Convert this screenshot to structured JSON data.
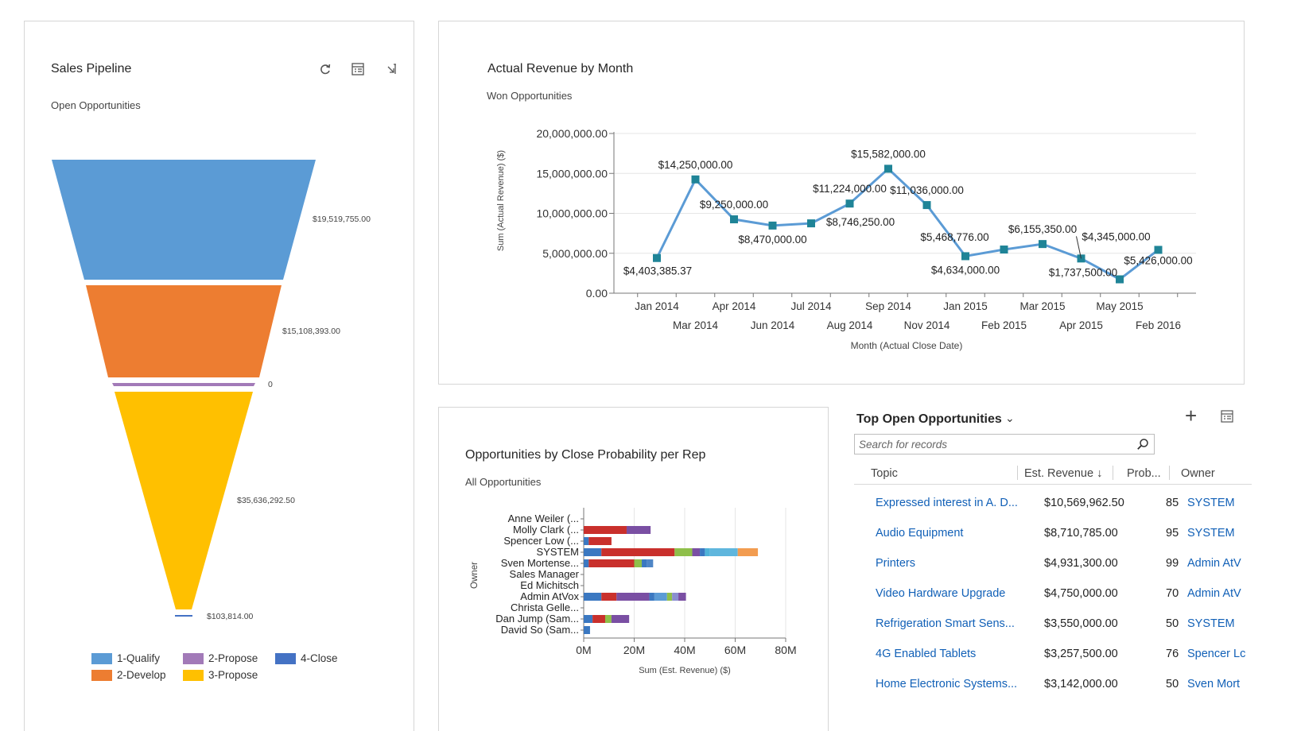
{
  "pipeline": {
    "title": "Sales Pipeline",
    "subtitle": "Open Opportunities",
    "icons": [
      "refresh-icon",
      "view-records-icon",
      "expand-chart-icon"
    ],
    "chart_data": {
      "type": "funnel",
      "stages": [
        {
          "name": "1-Qualify",
          "value": 19519755.0,
          "label": "$19,519,755.00",
          "color": "#5b9bd5"
        },
        {
          "name": "2-Develop",
          "value": 15108393.0,
          "label": "$15,108,393.00",
          "color": "#ed7d31"
        },
        {
          "name": "2-Propose",
          "value": 0,
          "label": "0",
          "color": "#a27ab8"
        },
        {
          "name": "3-Propose",
          "value": 35636292.5,
          "label": "$35,636,292.50",
          "color": "#ffc000"
        },
        {
          "name": "4-Close",
          "value": 103814.0,
          "label": "$103,814.00",
          "color": "#4472c4"
        }
      ]
    },
    "legend": [
      {
        "label": "1-Qualify",
        "color": "#5b9bd5"
      },
      {
        "label": "2-Propose",
        "color": "#a27ab8"
      },
      {
        "label": "4-Close",
        "color": "#4472c4"
      },
      {
        "label": "2-Develop",
        "color": "#ed7d31"
      },
      {
        "label": "3-Propose",
        "color": "#ffc000"
      }
    ]
  },
  "revenue": {
    "title": "Actual Revenue by Month",
    "subtitle": "Won Opportunities",
    "chart_data": {
      "type": "line",
      "ylabel": "Sum (Actual Revenue) ($)",
      "xlabel": "Month (Actual Close Date)",
      "ylim": [
        0,
        20000000
      ],
      "yticks": [
        "0.00",
        "5,000,000.00",
        "10,000,000.00",
        "15,000,000.00",
        "20,000,000.00"
      ],
      "ytick_values": [
        0,
        5000000,
        10000000,
        15000000,
        20000000
      ],
      "grid": true,
      "color": "#5b9bd5",
      "marker_color": "#1f8497",
      "x": [
        "Jan 2014",
        "Mar 2014",
        "Apr 2014",
        "Jun 2014",
        "Jul 2014",
        "Aug 2014",
        "Sep 2014",
        "Nov 2014",
        "Jan 2015",
        "Feb 2015",
        "Mar 2015",
        "Apr 2015",
        "May 2015",
        "Feb 2016"
      ],
      "values": [
        4403385.37,
        14250000.0,
        9250000.0,
        8470000.0,
        8746250.0,
        11224000.0,
        15582000.0,
        11036000.0,
        4634000.0,
        5468776.0,
        6155350.0,
        4345000.0,
        1737500.0,
        5426000.0
      ],
      "labels": [
        "$4,403,385.37",
        "$14,250,000.00",
        "$9,250,000.00",
        "$8,470,000.00",
        "$8,746,250.00",
        "$11,224,000.00",
        "$15,582,000.00",
        "$11,036,000.00",
        "$4,634,000.00",
        "$5,468,776.00",
        "$6,155,350.00",
        "$4,345,000.00",
        "$1,737,500.00",
        "$5,426,000.00"
      ]
    }
  },
  "probability": {
    "title": "Opportunities by Close Probability per Rep",
    "subtitle": "All Opportunities",
    "chart_data": {
      "type": "bar",
      "orientation": "horizontal",
      "stacked": true,
      "ylabel": "Owner",
      "xlabel": "Sum (Est. Revenue) ($)",
      "xlim": [
        0,
        80
      ],
      "xticks": [
        "0M",
        "20M",
        "40M",
        "60M",
        "80M"
      ],
      "xtick_values": [
        0,
        20,
        40,
        60,
        80
      ],
      "units": "M",
      "categories": [
        "Anne Weiler (...",
        "Molly Clark (...",
        "Spencer Low (...",
        "SYSTEM",
        "Sven Mortense...",
        "Sales Manager",
        "Ed Michitsch",
        "Admin AtVox",
        "Christa Gelle...",
        "Dan Jump (Sam...",
        "David So (Sam..."
      ],
      "segments": [
        [],
        [
          {
            "v": 17,
            "c": "#c9302c"
          },
          {
            "v": 9.5,
            "c": "#7a4fa3"
          }
        ],
        [
          {
            "v": 2,
            "c": "#3b78c1"
          },
          {
            "v": 9,
            "c": "#c9302c"
          }
        ],
        [
          {
            "v": 7,
            "c": "#3b78c1"
          },
          {
            "v": 29,
            "c": "#c9302c"
          },
          {
            "v": 7,
            "c": "#8fbf4a"
          },
          {
            "v": 3,
            "c": "#7a4fa3"
          },
          {
            "v": 2,
            "c": "#3b78c1"
          },
          {
            "v": 2,
            "c": "#4fb3d8"
          },
          {
            "v": 11,
            "c": "#5fb6dd"
          },
          {
            "v": 8,
            "c": "#f29c50"
          }
        ],
        [
          {
            "v": 2,
            "c": "#3b78c1"
          },
          {
            "v": 18,
            "c": "#c9302c"
          },
          {
            "v": 3,
            "c": "#8fbf4a"
          },
          {
            "v": 2,
            "c": "#3b78c1"
          },
          {
            "v": 2.5,
            "c": "#4f86c6"
          }
        ],
        [],
        [],
        [
          {
            "v": 7,
            "c": "#3b78c1"
          },
          {
            "v": 6,
            "c": "#c9302c"
          },
          {
            "v": 13,
            "c": "#7a4fa3"
          },
          {
            "v": 2,
            "c": "#3b78c1"
          },
          {
            "v": 5,
            "c": "#5b9bd5"
          },
          {
            "v": 2,
            "c": "#8fbf4a"
          },
          {
            "v": 2.5,
            "c": "#8a8fd0"
          },
          {
            "v": 3,
            "c": "#7a4fa3"
          }
        ],
        [],
        [
          {
            "v": 3.5,
            "c": "#3b78c1"
          },
          {
            "v": 5,
            "c": "#c9302c"
          },
          {
            "v": 2.5,
            "c": "#8fbf4a"
          },
          {
            "v": 7,
            "c": "#7a4fa3"
          }
        ],
        [
          {
            "v": 2.5,
            "c": "#3b78c1"
          }
        ]
      ]
    }
  },
  "top": {
    "title": "Top Open Opportunities",
    "search_placeholder": "Search for records",
    "columns": [
      "Topic",
      "Est. Revenue",
      "Prob...",
      "Owner"
    ],
    "rows": [
      {
        "topic": "Expressed interest in A. D...",
        "revenue": "$10,569,962.50",
        "prob": "85",
        "owner": "SYSTEM"
      },
      {
        "topic": "Audio Equipment",
        "revenue": "$8,710,785.00",
        "prob": "95",
        "owner": "SYSTEM"
      },
      {
        "topic": "Printers",
        "revenue": "$4,931,300.00",
        "prob": "99",
        "owner": "Admin AtV"
      },
      {
        "topic": "Video Hardware Upgrade",
        "revenue": "$4,750,000.00",
        "prob": "70",
        "owner": "Admin AtV"
      },
      {
        "topic": "Refrigeration Smart Sens...",
        "revenue": "$3,550,000.00",
        "prob": "50",
        "owner": "SYSTEM"
      },
      {
        "topic": "4G Enabled Tablets",
        "revenue": "$3,257,500.00",
        "prob": "76",
        "owner": "Spencer Lc"
      },
      {
        "topic": "Home Electronic Systems...",
        "revenue": "$3,142,000.00",
        "prob": "50",
        "owner": "Sven Mort"
      }
    ]
  }
}
